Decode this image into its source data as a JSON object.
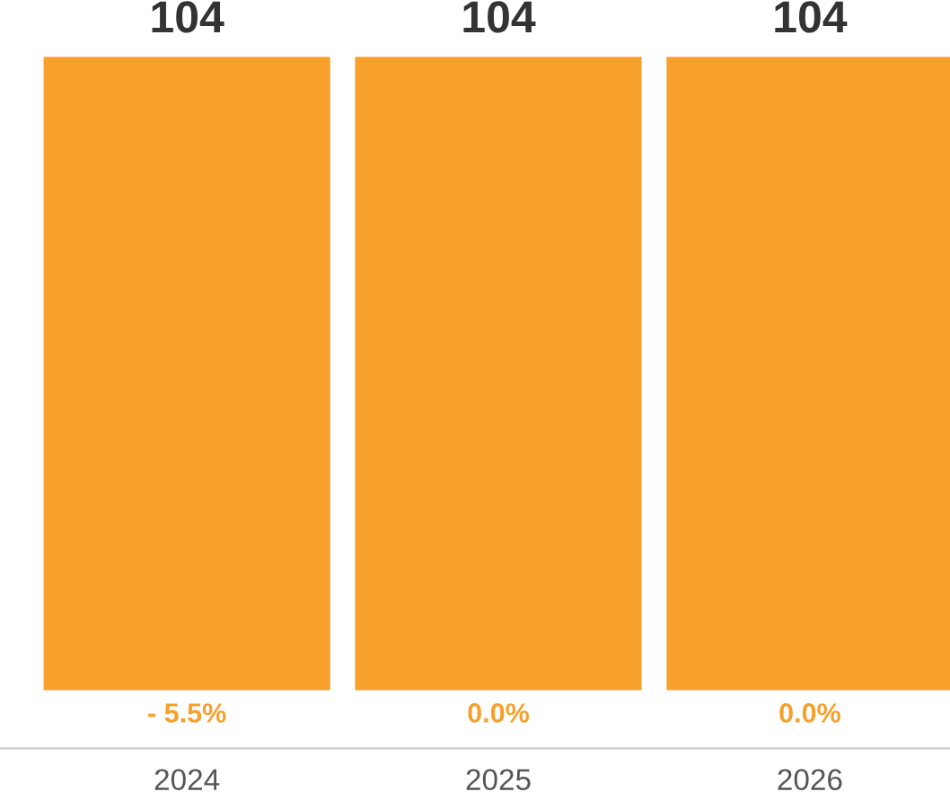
{
  "chart_data": {
    "type": "bar",
    "categories": [
      "2024",
      "2025",
      "2026"
    ],
    "values": [
      104,
      104,
      104
    ],
    "color": "#f7a02b",
    "data_labels": true,
    "grid": false,
    "annotations": [
      "- 5.5%",
      "0.0%",
      "0.0%"
    ]
  }
}
